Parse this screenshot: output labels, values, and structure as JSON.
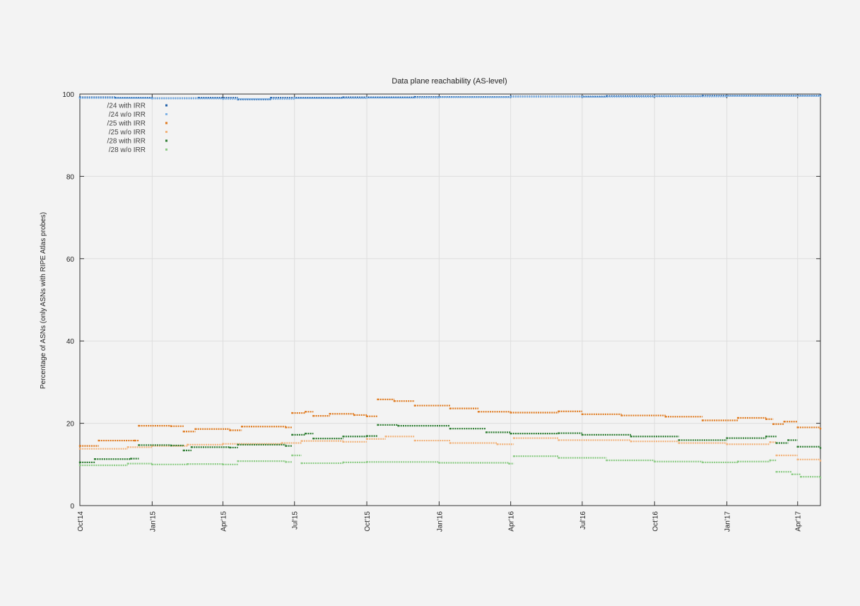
{
  "chart_data": {
    "type": "scatter",
    "title": "Data plane reachability (AS-level)",
    "xlabel": "",
    "ylabel": "Percentage of ASNs (only ASNs with RIPE Atlas probes)",
    "xlim": [
      "2014-10-01",
      "2017-04-30"
    ],
    "ylim": [
      0,
      100
    ],
    "yticks": [
      0,
      20,
      40,
      60,
      80,
      100
    ],
    "xticks": [
      {
        "date": "2014-10-01",
        "label": "Oct'14"
      },
      {
        "date": "2015-01-01",
        "label": "Jan'15"
      },
      {
        "date": "2015-04-01",
        "label": "Apr'15"
      },
      {
        "date": "2015-07-01",
        "label": "Jul'15"
      },
      {
        "date": "2015-10-01",
        "label": "Oct'15"
      },
      {
        "date": "2016-01-01",
        "label": "Jan'16"
      },
      {
        "date": "2016-04-01",
        "label": "Apr'16"
      },
      {
        "date": "2016-07-01",
        "label": "Jul'16"
      },
      {
        "date": "2016-10-01",
        "label": "Oct'16"
      },
      {
        "date": "2017-01-01",
        "label": "Jan'17"
      },
      {
        "date": "2017-04-01",
        "label": "Apr'17"
      }
    ],
    "grid": true,
    "legend_position": "top-left",
    "series": [
      {
        "name": "/24 with IRR",
        "color": "#1f5fa8",
        "points": [
          [
            "2014-10-01",
            99.2
          ],
          [
            "2014-11-15",
            99.1
          ],
          [
            "2015-01-01",
            99.0
          ],
          [
            "2015-03-01",
            99.1
          ],
          [
            "2015-04-20",
            98.7
          ],
          [
            "2015-06-01",
            99.1
          ],
          [
            "2015-09-01",
            99.2
          ],
          [
            "2015-12-01",
            99.3
          ],
          [
            "2016-04-01",
            99.4
          ],
          [
            "2016-08-01",
            99.5
          ],
          [
            "2016-12-01",
            99.6
          ],
          [
            "2017-04-30",
            99.7
          ]
        ]
      },
      {
        "name": "/24 w/o IRR",
        "color": "#7fb2e5",
        "points": [
          [
            "2014-10-01",
            99.0
          ],
          [
            "2015-01-01",
            98.9
          ],
          [
            "2015-04-01",
            98.8
          ],
          [
            "2015-07-01",
            99.0
          ],
          [
            "2015-10-01",
            99.1
          ],
          [
            "2016-01-01",
            99.2
          ],
          [
            "2016-04-01",
            99.3
          ],
          [
            "2016-07-01",
            99.3
          ],
          [
            "2016-10-01",
            99.4
          ],
          [
            "2017-01-01",
            99.5
          ],
          [
            "2017-04-30",
            99.5
          ]
        ]
      },
      {
        "name": "/25 with IRR",
        "color": "#e07b20",
        "points": [
          [
            "2014-10-01",
            14.5
          ],
          [
            "2014-10-25",
            15.8
          ],
          [
            "2014-12-10",
            15.8
          ],
          [
            "2014-12-15",
            19.4
          ],
          [
            "2015-01-25",
            19.3
          ],
          [
            "2015-02-10",
            18.0
          ],
          [
            "2015-02-25",
            18.6
          ],
          [
            "2015-04-10",
            18.3
          ],
          [
            "2015-04-25",
            19.2
          ],
          [
            "2015-06-20",
            19.0
          ],
          [
            "2015-06-28",
            22.5
          ],
          [
            "2015-07-15",
            22.8
          ],
          [
            "2015-07-25",
            21.8
          ],
          [
            "2015-08-15",
            22.3
          ],
          [
            "2015-09-15",
            22.0
          ],
          [
            "2015-10-01",
            21.7
          ],
          [
            "2015-10-15",
            25.8
          ],
          [
            "2015-11-05",
            25.4
          ],
          [
            "2015-12-01",
            24.3
          ],
          [
            "2016-01-15",
            23.6
          ],
          [
            "2016-02-20",
            22.8
          ],
          [
            "2016-04-01",
            22.6
          ],
          [
            "2016-06-01",
            22.9
          ],
          [
            "2016-07-01",
            22.2
          ],
          [
            "2016-08-20",
            21.9
          ],
          [
            "2016-10-15",
            21.6
          ],
          [
            "2016-12-01",
            20.7
          ],
          [
            "2017-01-15",
            21.3
          ],
          [
            "2017-02-20",
            21.0
          ],
          [
            "2017-03-01",
            19.8
          ],
          [
            "2017-03-15",
            20.4
          ],
          [
            "2017-04-01",
            19.0
          ],
          [
            "2017-04-30",
            18.7
          ]
        ]
      },
      {
        "name": "/25 w/o IRR",
        "color": "#f2b27a",
        "points": [
          [
            "2014-10-01",
            13.8
          ],
          [
            "2014-12-01",
            14.2
          ],
          [
            "2015-01-01",
            14.5
          ],
          [
            "2015-02-15",
            14.8
          ],
          [
            "2015-04-01",
            15.0
          ],
          [
            "2015-06-15",
            15.2
          ],
          [
            "2015-07-10",
            15.7
          ],
          [
            "2015-09-01",
            15.5
          ],
          [
            "2015-10-01",
            16.2
          ],
          [
            "2015-10-25",
            16.8
          ],
          [
            "2015-12-01",
            15.8
          ],
          [
            "2016-01-15",
            15.2
          ],
          [
            "2016-03-15",
            14.9
          ],
          [
            "2016-04-05",
            16.4
          ],
          [
            "2016-06-01",
            15.9
          ],
          [
            "2016-09-01",
            15.6
          ],
          [
            "2016-11-01",
            15.2
          ],
          [
            "2017-01-01",
            14.9
          ],
          [
            "2017-02-25",
            15.4
          ],
          [
            "2017-03-05",
            12.2
          ],
          [
            "2017-04-01",
            11.2
          ],
          [
            "2017-04-30",
            10.9
          ]
        ]
      },
      {
        "name": "/28 with IRR",
        "color": "#2e7d32",
        "points": [
          [
            "2014-10-01",
            10.5
          ],
          [
            "2014-10-20",
            11.3
          ],
          [
            "2014-12-05",
            11.4
          ],
          [
            "2014-12-15",
            14.7
          ],
          [
            "2015-01-25",
            14.6
          ],
          [
            "2015-02-10",
            13.4
          ],
          [
            "2015-02-20",
            14.2
          ],
          [
            "2015-04-10",
            14.1
          ],
          [
            "2015-04-20",
            14.8
          ],
          [
            "2015-06-20",
            14.5
          ],
          [
            "2015-06-28",
            17.2
          ],
          [
            "2015-07-15",
            17.5
          ],
          [
            "2015-07-25",
            16.3
          ],
          [
            "2015-09-01",
            16.8
          ],
          [
            "2015-10-01",
            16.9
          ],
          [
            "2015-10-15",
            19.6
          ],
          [
            "2015-11-10",
            19.4
          ],
          [
            "2016-01-15",
            18.7
          ],
          [
            "2016-03-01",
            17.8
          ],
          [
            "2016-04-01",
            17.5
          ],
          [
            "2016-06-01",
            17.6
          ],
          [
            "2016-07-01",
            17.2
          ],
          [
            "2016-09-01",
            16.8
          ],
          [
            "2016-11-01",
            15.9
          ],
          [
            "2017-01-01",
            16.4
          ],
          [
            "2017-02-20",
            16.8
          ],
          [
            "2017-03-05",
            15.2
          ],
          [
            "2017-03-20",
            15.9
          ],
          [
            "2017-04-01",
            14.3
          ],
          [
            "2017-04-30",
            14.0
          ]
        ]
      },
      {
        "name": "/28 w/o IRR",
        "color": "#8ccb85",
        "points": [
          [
            "2014-10-01",
            9.8
          ],
          [
            "2014-12-01",
            10.2
          ],
          [
            "2015-01-01",
            10.0
          ],
          [
            "2015-02-15",
            10.1
          ],
          [
            "2015-04-01",
            10.0
          ],
          [
            "2015-04-20",
            10.8
          ],
          [
            "2015-06-20",
            10.6
          ],
          [
            "2015-06-28",
            12.2
          ],
          [
            "2015-07-10",
            10.3
          ],
          [
            "2015-09-01",
            10.5
          ],
          [
            "2015-10-01",
            10.6
          ],
          [
            "2016-01-01",
            10.4
          ],
          [
            "2016-03-30",
            10.2
          ],
          [
            "2016-04-05",
            12.0
          ],
          [
            "2016-06-01",
            11.6
          ],
          [
            "2016-08-01",
            11.0
          ],
          [
            "2016-10-01",
            10.7
          ],
          [
            "2016-12-01",
            10.5
          ],
          [
            "2017-01-15",
            10.7
          ],
          [
            "2017-02-25",
            11.0
          ],
          [
            "2017-03-05",
            8.2
          ],
          [
            "2017-03-25",
            7.6
          ],
          [
            "2017-04-05",
            7.0
          ],
          [
            "2017-04-30",
            6.8
          ]
        ]
      }
    ]
  }
}
